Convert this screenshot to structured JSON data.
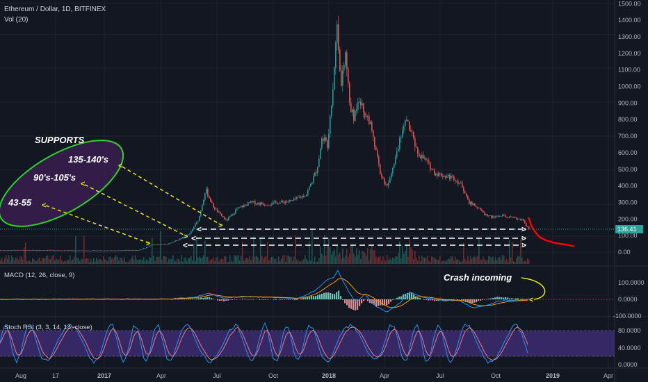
{
  "header": {
    "symbol": "Ethereum / Dollar, 1D, BITFINEX",
    "vol": "Vol (20)"
  },
  "price_axis": {
    "ticks": [
      "1500.00",
      "1400.00",
      "1300.00",
      "1200.00",
      "1100.00",
      "1000.00",
      "900.00",
      "800.00",
      "700.00",
      "600.00",
      "500.00",
      "400.00",
      "300.00",
      "200.00",
      "100.00",
      "0.00"
    ],
    "last_price": "136.41",
    "last_color": "#26a69a"
  },
  "time_axis": {
    "ticks": [
      "Aug",
      "17",
      "2017",
      "Apr",
      "Jul",
      "Oct",
      "2018",
      "Apr",
      "Jul",
      "Oct",
      "2019",
      "Apr"
    ]
  },
  "annotations": {
    "supports_title": "SUPPORTS",
    "support_labels": [
      "135-140's",
      "90's-105's",
      "43-55"
    ],
    "crash_note": "Crash incoming"
  },
  "macd": {
    "label": "MACD (12, 26, close, 9)",
    "ticks": [
      "100.0000",
      "0.0000",
      "-100.0000"
    ]
  },
  "stoch": {
    "label": "Stoch RSI (3, 3, 14, 14, close)",
    "ticks": [
      "80.0000",
      "40.0000",
      "0.0000"
    ]
  },
  "colors": {
    "up": "#26a69a",
    "down": "#ef5350",
    "projection": "#ff0000",
    "ellipse": "#2bd42b",
    "arrow_yellow": "#e8e81a",
    "stoch_band": "#3b2a6b"
  },
  "chart_data": {
    "type": "candlestick",
    "title": "Ethereum / Dollar, 1D, BITFINEX",
    "ylim": [
      0,
      1500
    ],
    "x": [
      "2016-08",
      "2016-10",
      "2017-01",
      "2017-03",
      "2017-04",
      "2017-05",
      "2017-06",
      "2017-07",
      "2017-08",
      "2017-09",
      "2017-10",
      "2017-11",
      "2017-12",
      "2018-01",
      "2018-02",
      "2018-03",
      "2018-04",
      "2018-05",
      "2018-06",
      "2018-07",
      "2018-08",
      "2018-09",
      "2018-10",
      "2018-11"
    ],
    "close": [
      11,
      12,
      10,
      50,
      50,
      90,
      350,
      200,
      300,
      280,
      300,
      450,
      750,
      1100,
      850,
      500,
      400,
      700,
      450,
      450,
      280,
      220,
      200,
      136
    ],
    "support_levels": [
      137,
      100,
      50
    ],
    "projection": [
      210,
      160,
      120,
      80,
      60,
      45,
      35
    ]
  }
}
